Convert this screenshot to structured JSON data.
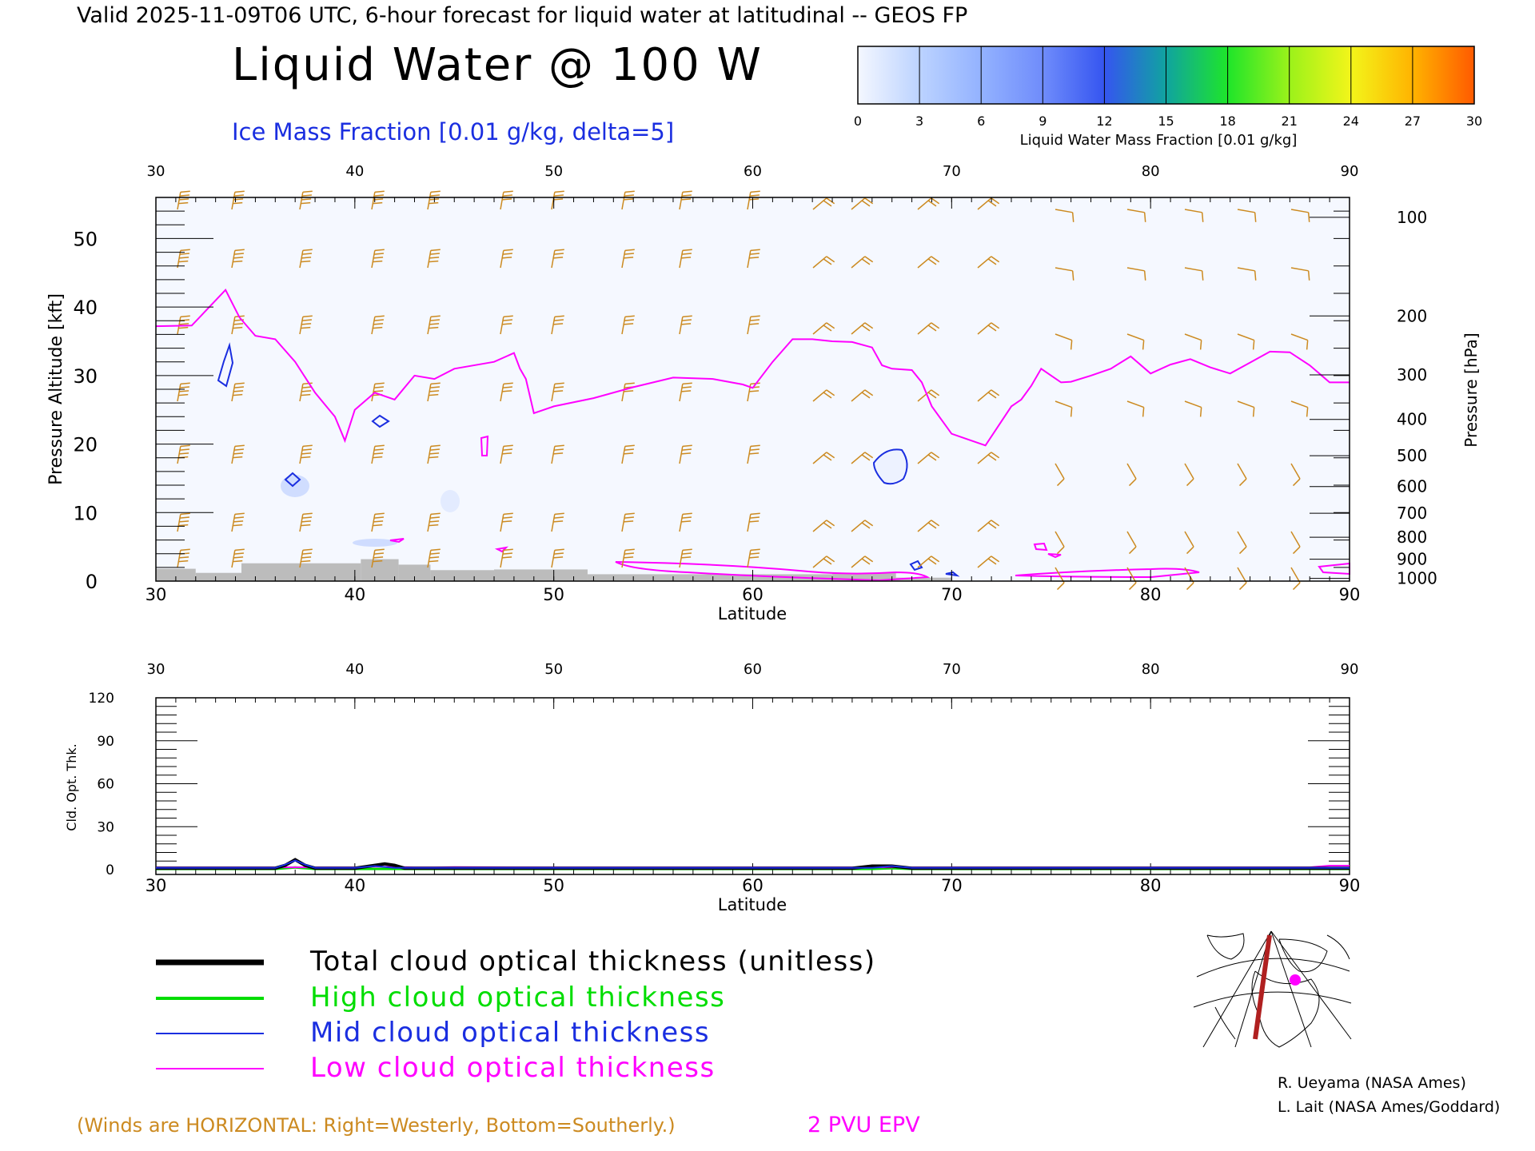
{
  "header": {
    "valid_line": "Valid 2025-11-09T06 UTC, 6-hour forecast for liquid water at latitudinal -- GEOS FP",
    "title": "Liquid Water @ 100 W",
    "subtitle": "Ice Mass Fraction [0.01 g/kg, delta=5]"
  },
  "colorbar": {
    "label": "Liquid Water Mass Fraction [0.01 g/kg]",
    "ticks": [
      "0",
      "3",
      "6",
      "9",
      "12",
      "15",
      "18",
      "21",
      "24",
      "27",
      "30"
    ],
    "colors": [
      "#f4f7ff",
      "#bcd3ff",
      "#93b2ff",
      "#6f8cfb",
      "#3555f0",
      "#10a3a0",
      "#1ee52a",
      "#9bf21a",
      "#f3f51a",
      "#ffb300",
      "#ff5a00"
    ]
  },
  "colors": {
    "epv": "#ff00ff",
    "ice_contour": "#1a2ee0",
    "wind_barbs": "#cc8a20",
    "total": "#000000",
    "high": "#00dd00",
    "mid": "#1a2ee0",
    "low": "#ff00ff",
    "terrain": "#bcbcbc"
  },
  "chart_data": [
    {
      "type": "line",
      "name": "main-cross-section",
      "xlabel": "Latitude",
      "ylabel_left": "Pressure Altitude [kft]",
      "ylabel_right": "Pressure [hPa]",
      "x_ticks": [
        "30",
        "40",
        "50",
        "60",
        "70",
        "80",
        "90"
      ],
      "xlim": [
        30,
        90
      ],
      "y_ticks": [
        "0",
        "10",
        "20",
        "30",
        "40",
        "50"
      ],
      "ylim": [
        0,
        56
      ],
      "pressure_ticks": [
        {
          "label": "100",
          "kft": 53.1
        },
        {
          "label": "200",
          "kft": 38.7
        },
        {
          "label": "300",
          "kft": 30.1
        },
        {
          "label": "400",
          "kft": 23.6
        },
        {
          "label": "500",
          "kft": 18.3
        },
        {
          "label": "600",
          "kft": 13.8
        },
        {
          "label": "700",
          "kft": 9.9
        },
        {
          "label": "800",
          "kft": 6.4
        },
        {
          "label": "900",
          "kft": 3.2
        },
        {
          "label": "1000",
          "kft": 0.4
        }
      ],
      "series": [
        {
          "name": "2 PVU EPV",
          "x": [
            30,
            31.8,
            33.5,
            34.2,
            35,
            36,
            37,
            38,
            39,
            39.5,
            40,
            41,
            42,
            43,
            44,
            45,
            47,
            48,
            48.3,
            48.6,
            49,
            50,
            52,
            54,
            56,
            58,
            59.5,
            60,
            61,
            62,
            63,
            64,
            65,
            66,
            66.5,
            67,
            68,
            68.5,
            69,
            70,
            71,
            71.7,
            73,
            73.5,
            74,
            74.5,
            75,
            75.5,
            76,
            77,
            78,
            79,
            80,
            81,
            82,
            83,
            84,
            85,
            86,
            87,
            88,
            89,
            90
          ],
          "y": [
            37.2,
            37.3,
            42.5,
            38.5,
            35.8,
            35.3,
            32,
            27.5,
            24,
            20.5,
            25,
            27.5,
            26.5,
            30,
            29.5,
            31,
            32,
            33.3,
            31,
            29.5,
            24.5,
            25.5,
            26.7,
            28.3,
            29.7,
            29.5,
            28.7,
            28.2,
            32,
            35.3,
            35.3,
            35,
            34.9,
            34.1,
            31.5,
            31,
            30.8,
            29,
            25.5,
            21.5,
            20.5,
            19.8,
            25.5,
            26.5,
            28.5,
            31,
            30,
            29,
            29.1,
            30,
            31,
            32.8,
            30.3,
            31.6,
            32.4,
            31.2,
            30.3,
            31.9,
            33.5,
            33.4,
            31.5,
            29,
            29
          ]
        }
      ]
    },
    {
      "type": "line",
      "name": "cloud-optical-thickness",
      "xlabel": "Latitude",
      "ylabel": "Cld. Opt. Thk.",
      "x_ticks": [
        "30",
        "40",
        "50",
        "60",
        "70",
        "80",
        "90"
      ],
      "xlim": [
        30,
        90
      ],
      "y_ticks": [
        "0",
        "30",
        "60",
        "90",
        "120"
      ],
      "ylim": [
        0,
        120
      ],
      "series": [
        {
          "name": "Total cloud optical thickness (unitless)",
          "x": [
            30,
            36,
            36.5,
            37,
            37.5,
            38,
            40,
            41,
            41.5,
            42,
            42.5,
            60,
            65,
            66,
            67,
            68,
            70,
            90
          ],
          "y": [
            1,
            1,
            3,
            7,
            3,
            1,
            1,
            3,
            4,
            3,
            1,
            1,
            1,
            2.5,
            2.5,
            1,
            1,
            1
          ]
        },
        {
          "name": "High cloud optical thickness",
          "x": [
            30,
            36,
            37,
            38,
            41,
            42,
            66,
            67,
            68,
            90
          ],
          "y": [
            0.5,
            0.5,
            1.5,
            0.5,
            0.5,
            0.5,
            0.5,
            1,
            0.5,
            0.5
          ]
        },
        {
          "name": "Mid cloud optical thickness",
          "x": [
            30,
            36,
            36.5,
            37,
            37.5,
            38,
            40,
            41,
            42,
            66,
            67,
            68,
            90
          ],
          "y": [
            1.2,
            1.2,
            3.5,
            6.5,
            3.5,
            1.2,
            1.2,
            2.5,
            1.2,
            1.2,
            2.5,
            1.2,
            1.2
          ]
        },
        {
          "name": "Low cloud optical thickness",
          "x": [
            30,
            40,
            41,
            42,
            43,
            44,
            45,
            50,
            60,
            70,
            80,
            88,
            89,
            90
          ],
          "y": [
            1.6,
            1.6,
            2.2,
            1.9,
            1.6,
            1.6,
            1.8,
            1.6,
            1.6,
            1.6,
            1.6,
            1.6,
            2.8,
            2.8
          ]
        }
      ]
    }
  ],
  "legend": [
    {
      "label": "Total cloud optical thickness (unitless)",
      "color": "#000000"
    },
    {
      "label": "High cloud optical thickness",
      "color": "#00dd00"
    },
    {
      "label": "Mid cloud optical thickness",
      "color": "#1a2ee0"
    },
    {
      "label": "Low cloud optical thickness",
      "color": "#ff00ff"
    }
  ],
  "footer": {
    "winds_note": "(Winds are HORIZONTAL: Right=Westerly, Bottom=Southerly.)",
    "epv_label": "2 PVU EPV",
    "credit1": "R. Ueyama (NASA Ames)",
    "credit2": "L. Lait (NASA Ames/Goddard)"
  }
}
